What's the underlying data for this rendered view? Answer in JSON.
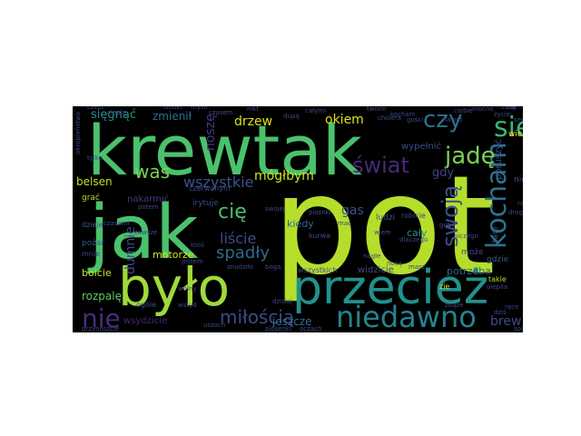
{
  "figure": {
    "background": "#ffffff",
    "cloud_background": "#000000",
    "palette": [
      "#b5de2b",
      "#4ac16d",
      "#1fa187",
      "#21918c",
      "#2c728e",
      "#3b528b",
      "#472d7b",
      "#440154"
    ]
  },
  "words": [
    {
      "text": "pot",
      "color": "#b5de2b"
    },
    {
      "text": "krewtak",
      "color": "#4ac16d"
    },
    {
      "text": "jak",
      "color": "#4ac16d"
    },
    {
      "text": "było",
      "color": "#a0da39"
    },
    {
      "text": "przecież",
      "color": "#21918c"
    },
    {
      "text": "niedawno",
      "color": "#26828e"
    },
    {
      "text": "kocham",
      "color": "#2c728e"
    },
    {
      "text": "się",
      "color": "#35b779"
    },
    {
      "text": "czy",
      "color": "#2c728e"
    },
    {
      "text": "jadę",
      "color": "#7ad151"
    },
    {
      "text": "swoją",
      "color": "#3b528b"
    },
    {
      "text": "świat",
      "color": "#482878"
    },
    {
      "text": "nie",
      "color": "#472d7b"
    },
    {
      "text": "miłością",
      "color": "#3e4989"
    },
    {
      "text": "cię",
      "color": "#4ac16d"
    },
    {
      "text": "was",
      "color": "#7ad151"
    },
    {
      "text": "liście",
      "color": "#3e4989"
    },
    {
      "text": "spadły",
      "color": "#31688e"
    },
    {
      "text": "wszystkie",
      "color": "#3b528b"
    },
    {
      "text": "mógłbym",
      "color": "#d0e11c"
    },
    {
      "text": "drzew",
      "color": "#d8e219"
    },
    {
      "text": "okiem",
      "color": "#d8e219"
    },
    {
      "text": "sięgnąć",
      "color": "#21918c"
    },
    {
      "text": "zmienił",
      "color": "#2c728e"
    },
    {
      "text": "brew",
      "color": "#3e4989"
    },
    {
      "text": "noszę",
      "color": "#443983"
    },
    {
      "text": "gas",
      "color": "#3b528b"
    },
    {
      "text": "dumnie",
      "color": "#3e4989"
    },
    {
      "text": "belsen",
      "color": "#c2df23"
    },
    {
      "text": "jeszcze",
      "color": "#2c728e"
    },
    {
      "text": "motorze",
      "color": "#d8e219"
    },
    {
      "text": "rozpalę",
      "color": "#5ec962"
    },
    {
      "text": "boicie",
      "color": "#cde11d"
    },
    {
      "text": "potrzeba",
      "color": "#33638d"
    },
    {
      "text": "gdy",
      "color": "#414487"
    },
    {
      "text": "kiedy",
      "color": "#31688e"
    },
    {
      "text": "wypełnić",
      "color": "#3e4989"
    },
    {
      "text": "poruszyć",
      "color": "#3b528b"
    },
    {
      "text": "cały",
      "color": "#21918c"
    },
    {
      "text": "widzicie",
      "color": "#3e4989"
    },
    {
      "text": "nakarmić",
      "color": "#443983"
    },
    {
      "text": "pożar",
      "color": "#38588c"
    },
    {
      "text": "grać",
      "color": "#bddf26"
    },
    {
      "text": "wszystkich",
      "color": "#3e4989"
    },
    {
      "text": "irytuje",
      "color": "#3e4989"
    },
    {
      "text": "wsydzicie",
      "color": "#482475"
    },
    {
      "text": "gdzie",
      "color": "#38588c"
    },
    {
      "text": "może",
      "color": "#3e4989"
    },
    {
      "text": "ludzi",
      "color": "#3b528b"
    },
    {
      "text": "stare",
      "color": "#3b528b"
    },
    {
      "text": "niebo",
      "color": "#3b528b"
    },
    {
      "text": "wieku",
      "color": "#fde725"
    },
    {
      "text": "czerwonym",
      "color": "#3e4989"
    },
    {
      "text": "kurwa",
      "color": "#3e4989"
    },
    {
      "text": "dzieje",
      "color": "#38588c"
    },
    {
      "text": "taj",
      "color": "#3b528b"
    },
    {
      "text": "mnie",
      "color": "#3e4989"
    },
    {
      "text": "zie",
      "color": "#d8e219"
    },
    {
      "text": "takie",
      "color": "#c2df23"
    },
    {
      "text": "robicie",
      "color": "#3e4989"
    },
    {
      "text": "ogóle",
      "color": "#3b528b"
    },
    {
      "text": "soiowki",
      "color": "#3e4989"
    },
    {
      "text": "uszach",
      "color": "#3e4989"
    },
    {
      "text": "oczach",
      "color": "#3e4989"
    },
    {
      "text": "piosenki",
      "color": "#3e4989"
    },
    {
      "text": "dzisiaj",
      "color": "#3e4989"
    },
    {
      "text": "swojej",
      "color": "#3e4989"
    },
    {
      "text": "mac",
      "color": "#3e4989"
    },
    {
      "text": "masz",
      "color": "#3e4989"
    },
    {
      "text": "boga",
      "color": "#3e4989"
    },
    {
      "text": "dupą",
      "color": "#3e4989"
    },
    {
      "text": "całymi",
      "color": "#3e4989"
    },
    {
      "text": "gości",
      "color": "#3e4989"
    },
    {
      "text": "przynoszcie",
      "color": "#3e4989"
    },
    {
      "text": "okropieństwo",
      "color": "#3e4989"
    },
    {
      "text": "znudziło",
      "color": "#3e4989"
    },
    {
      "text": "piosnki",
      "color": "#3e4989"
    },
    {
      "text": "dlaczego",
      "color": "#3e4989"
    },
    {
      "text": "olepila",
      "color": "#3e4989"
    },
    {
      "text": "nawet",
      "color": "#3e4989"
    },
    {
      "text": "zdąże",
      "color": "#3e4989"
    },
    {
      "text": "cześć",
      "color": "#3e4989"
    },
    {
      "text": "ciepłą",
      "color": "#3e4989"
    },
    {
      "text": "słodki",
      "color": "#3e4989"
    },
    {
      "text": "myśli",
      "color": "#3e4989"
    },
    {
      "text": "czasem",
      "color": "#3e4989"
    },
    {
      "text": "nikt",
      "color": "#3e4989"
    },
    {
      "text": "twoim",
      "color": "#3e4989"
    },
    {
      "text": "cholera",
      "color": "#3e4989"
    },
    {
      "text": "kocham",
      "color": "#3e4989"
    },
    {
      "text": "wiem",
      "color": "#3e4989"
    },
    {
      "text": "sami",
      "color": "#3e4989"
    },
    {
      "text": "ciebie",
      "color": "#3e4989"
    },
    {
      "text": "mocno",
      "color": "#3e4989"
    },
    {
      "text": "życie",
      "color": "#3e4989"
    },
    {
      "text": "serce",
      "color": "#3e4989"
    },
    {
      "text": "tylko",
      "color": "#3e4989"
    },
    {
      "text": "gęby",
      "color": "#3e4989"
    },
    {
      "text": "niczego",
      "color": "#3e4989"
    },
    {
      "text": "nagle",
      "color": "#3e4989"
    },
    {
      "text": "nocą",
      "color": "#3e4989"
    },
    {
      "text": "dziś",
      "color": "#3e4989"
    },
    {
      "text": "ręce",
      "color": "#3e4989"
    },
    {
      "text": "raz",
      "color": "#3e4989"
    },
    {
      "text": "drogą",
      "color": "#3e4989"
    },
    {
      "text": "ktoś",
      "color": "#3e4989"
    },
    {
      "text": "jestem",
      "color": "#3e4989"
    },
    {
      "text": "wolny",
      "color": "#3e4989"
    },
    {
      "text": "wstyd",
      "color": "#3e4989"
    },
    {
      "text": "potem",
      "color": "#3e4989"
    },
    {
      "text": "zawsze",
      "color": "#3e4989"
    },
    {
      "text": "czasami",
      "color": "#3e4989"
    },
    {
      "text": "dobrze",
      "color": "#3e4989"
    }
  ]
}
